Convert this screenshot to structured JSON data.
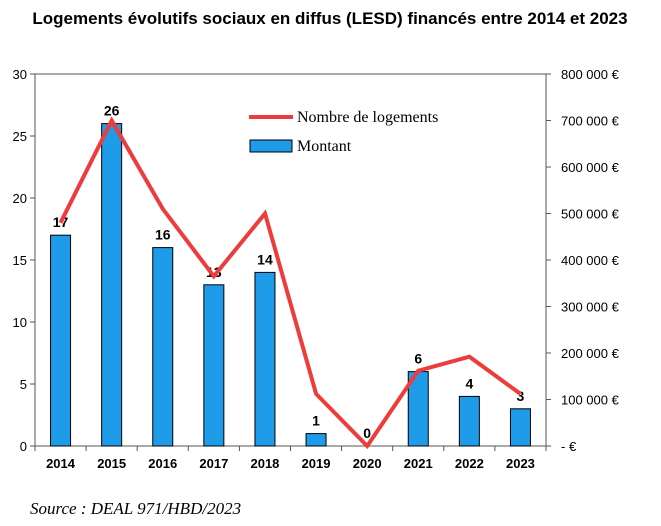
{
  "chart_data": {
    "type": "bar",
    "title": "Logements évolutifs sociaux en diffus (LESD) financés entre 2014 et 2023",
    "categories": [
      "2014",
      "2015",
      "2016",
      "2017",
      "2018",
      "2019",
      "2020",
      "2021",
      "2022",
      "2023"
    ],
    "series": [
      {
        "name": "Montant",
        "type": "bar",
        "axis": "left",
        "color": "#1E9BE9",
        "values": [
          17,
          26,
          16,
          13,
          14,
          1,
          0,
          6,
          4,
          3
        ],
        "labels": [
          "17",
          "26",
          "16",
          "13",
          "14",
          "1",
          "0",
          "6",
          "4",
          "3"
        ]
      },
      {
        "name": "Nombre de logements",
        "type": "line",
        "axis": "right",
        "color": "#EE3B3B",
        "values": [
          480000,
          700000,
          510000,
          365000,
          500000,
          112000,
          0,
          162000,
          192000,
          112000
        ]
      }
    ],
    "left_axis": {
      "ylim": [
        0,
        30
      ],
      "ticks": [
        "0",
        "5",
        "10",
        "15",
        "20",
        "25",
        "30"
      ]
    },
    "right_axis": {
      "ylim": [
        0,
        800000
      ],
      "ticks": [
        "- €",
        "100 000 €",
        "200 000 €",
        "300 000 €",
        "400 000 €",
        "500 000 €",
        "600 000 €",
        "700 000 €",
        "800 000 €"
      ]
    },
    "legend_position": "top-center",
    "grid": false
  },
  "source": "Source : DEAL 971/HBD/2023"
}
